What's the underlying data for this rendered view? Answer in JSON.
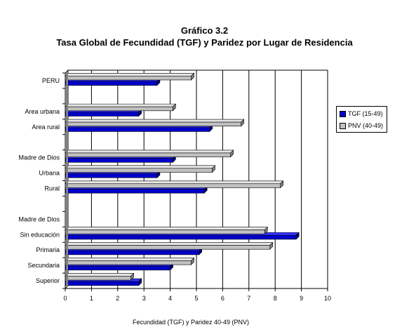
{
  "chart_data": {
    "type": "bar",
    "orientation": "horizontal",
    "title": "Gráfico 3.2",
    "subtitle": "Tasa Global de Fecundidad (TGF) y Paridez por Lugar de Residencia",
    "xlabel": "Fecundidad (TGF) y Paridez 40-49 (PNV)",
    "ylabel": "",
    "xlim": [
      0,
      10
    ],
    "xticks": [
      0,
      1,
      2,
      3,
      4,
      5,
      6,
      7,
      8,
      9,
      10
    ],
    "grid": "vertical",
    "legend_position": "right",
    "categories": [
      "PERU",
      "",
      "Area urbana",
      "Area rural",
      "",
      "Madre de Dios",
      "Urbana",
      "Rural",
      "",
      "Madre de Dios",
      "Sin educación",
      "Primaria",
      "Secundaria",
      "Superior"
    ],
    "series": [
      {
        "name": "TGF (15-49)",
        "color": "#0000cc",
        "values": [
          3.5,
          null,
          2.8,
          5.5,
          null,
          4.1,
          3.5,
          5.3,
          null,
          null,
          8.8,
          5.1,
          4.0,
          2.8
        ]
      },
      {
        "name": "PNV (40-49)",
        "color": "#c0c0c0",
        "values": [
          4.8,
          null,
          4.1,
          6.7,
          null,
          6.3,
          5.6,
          8.2,
          null,
          null,
          7.6,
          7.8,
          4.8,
          2.5
        ]
      }
    ]
  }
}
